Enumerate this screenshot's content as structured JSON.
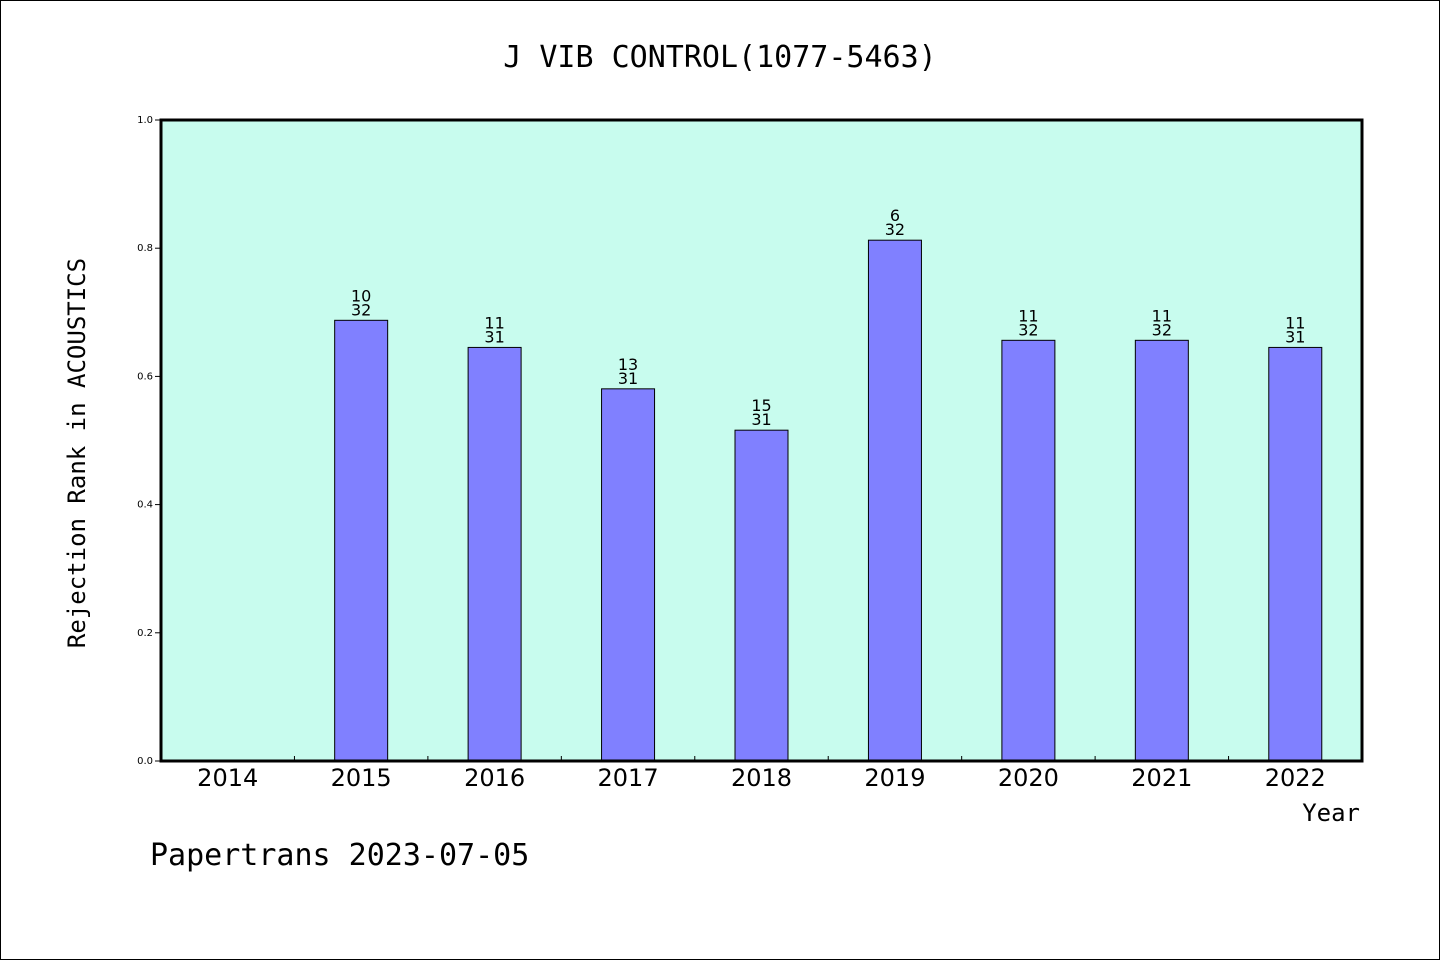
{
  "chart_data": {
    "type": "bar",
    "title": "J VIB CONTROL(1077-5463)",
    "xlabel": "Year",
    "ylabel": "Rejection Rank in ACOUSTICS",
    "ylim": [
      0,
      1.0
    ],
    "yticks": [
      "0.0",
      "0.2",
      "0.4",
      "0.6",
      "0.8",
      "1.0"
    ],
    "grid": false,
    "categories": [
      "2014",
      "2015",
      "2016",
      "2017",
      "2018",
      "2019",
      "2020",
      "2021",
      "2022"
    ],
    "values": [
      null,
      0.6875,
      0.6452,
      0.5806,
      0.5161,
      0.8125,
      0.6563,
      0.6563,
      0.6452
    ],
    "labels": [
      null,
      [
        "10",
        "32"
      ],
      [
        "11",
        "31"
      ],
      [
        "13",
        "31"
      ],
      [
        "15",
        "31"
      ],
      [
        "6",
        "32"
      ],
      [
        "11",
        "32"
      ],
      [
        "11",
        "32"
      ],
      [
        "11",
        "31"
      ]
    ],
    "colors": {
      "plot_background": "#c8fcee",
      "bar_fill": "#8080ff",
      "bar_stroke": "#000000"
    }
  },
  "footer": "Papertrans 2023-07-05"
}
